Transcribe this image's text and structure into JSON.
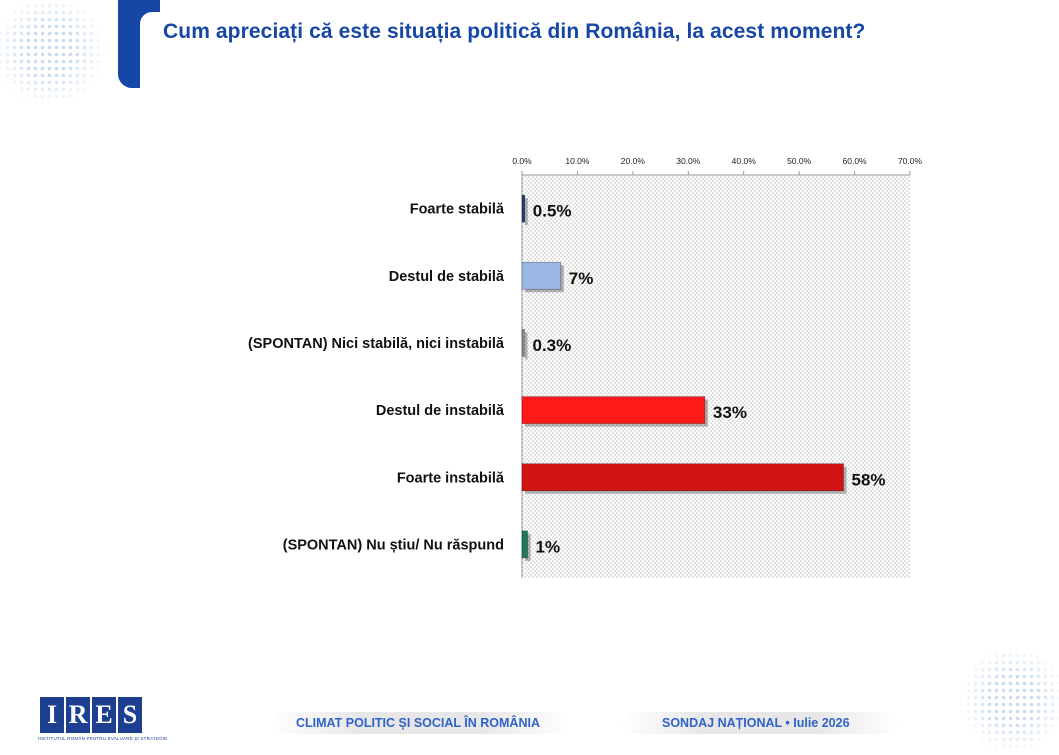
{
  "title": "Cum apreciați că este situația politică din România, la acest moment?",
  "chart_data": {
    "type": "bar",
    "orientation": "horizontal",
    "categories": [
      "Foarte stabilă",
      "Destul de stabilă",
      "(SPONTAN) Nici stabilă, nici instabilă",
      "Destul de instabilă",
      "Foarte instabilă",
      "(SPONTAN) Nu știu/ Nu răspund"
    ],
    "values": [
      0.5,
      7,
      0.3,
      33,
      58,
      1
    ],
    "value_labels": [
      "0.5%",
      "7%",
      "0.3%",
      "33%",
      "58%",
      "1%"
    ],
    "bar_colors": [
      "#1f3d73",
      "#9ab7e3",
      "#8a8a8a",
      "#ff1a1a",
      "#d01414",
      "#1f7a5a"
    ],
    "xlim": [
      0,
      70
    ],
    "ticks": [
      0,
      10,
      20,
      30,
      40,
      50,
      60,
      70
    ],
    "tick_labels": [
      "0.0%",
      "10.0%",
      "20.0%",
      "30.0%",
      "40.0%",
      "50.0%",
      "60.0%",
      "70.0%"
    ],
    "axis_position": "top",
    "grid": false,
    "legend": "none",
    "background": "dotted gray pattern"
  },
  "footer": {
    "logo_text": [
      "I",
      "R",
      "E",
      "S"
    ],
    "logo_subtitle": "INSTITUTUL ROMÂN PENTRU EVALUARE ȘI STRATEGIE",
    "left": "CLIMAT POLITIC ȘI SOCIAL ÎN ROMÂNIA",
    "right": "SONDAJ NAȚIONAL • Iulie 2026"
  },
  "colors": {
    "title": "#1747a6",
    "accent": "#1747a6",
    "footer_text": "#2f63c7",
    "logo": "#1c3f91"
  }
}
